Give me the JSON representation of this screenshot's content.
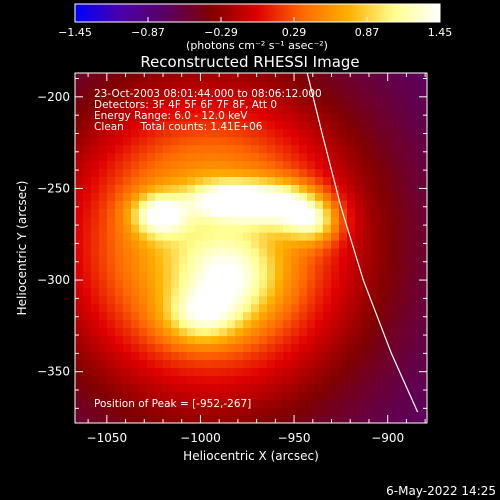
{
  "chart_data": {
    "type": "heatmap",
    "title": "Reconstructed RHESSI Image",
    "xlabel": "Heliocentric X (arcsec)",
    "ylabel": "Heliocentric Y (arcsec)",
    "xlim": [
      -1067,
      -879
    ],
    "ylim": [
      -378,
      -187
    ],
    "x_ticks": [
      {
        "value": -1050,
        "label": "−1050"
      },
      {
        "value": -1000,
        "label": "−1000"
      },
      {
        "value": -950,
        "label": "−950"
      },
      {
        "value": -900,
        "label": "−900"
      }
    ],
    "y_ticks": [
      {
        "value": -200,
        "label": "−200"
      },
      {
        "value": -250,
        "label": "−250"
      },
      {
        "value": -300,
        "label": "−300"
      },
      {
        "value": -350,
        "label": "−350"
      }
    ],
    "colorbar": {
      "min": -1.45,
      "max": 1.45,
      "ticks": [
        {
          "value": -1.45,
          "label": "−1.45"
        },
        {
          "value": -0.87,
          "label": "−0.87"
        },
        {
          "value": -0.29,
          "label": "−0.29"
        },
        {
          "value": 0.29,
          "label": "0.29"
        },
        {
          "value": 0.87,
          "label": "0.87"
        },
        {
          "value": 1.45,
          "label": "1.45"
        }
      ],
      "units_label": "(photons cm⁻² s⁻¹ asec⁻²)",
      "colors": [
        "#0000ff",
        "#4a00aa",
        "#5a0060",
        "#800000",
        "#e00000",
        "#ff6a00",
        "#ffb000",
        "#ffff90",
        "#ffffff"
      ]
    },
    "annotations": [
      "23-Oct-2003 08:01:44.000 to 08:06:12.000",
      "Detectors: 3F 4F 5F 6F 7F 8F, Att 0",
      "Energy Range: 6.0 - 12.0 keV",
      "Clean     Total counts: 1.41E+06"
    ],
    "peak_label": "Position of Peak = [-952,-267]",
    "limb_curve": [
      {
        "x": -943,
        "y": -187
      },
      {
        "x": -935,
        "y": -220
      },
      {
        "x": -925,
        "y": -260
      },
      {
        "x": -913,
        "y": -300
      },
      {
        "x": -898,
        "y": -340
      },
      {
        "x": -884,
        "y": -372
      }
    ],
    "source_blobs": [
      {
        "x": -995,
        "y": -280,
        "sx": 58,
        "sy": 62,
        "v": 0.85
      },
      {
        "x": -1022,
        "y": -264,
        "sx": 10,
        "sy": 8,
        "v": 1.05
      },
      {
        "x": -986,
        "y": -256,
        "sx": 14,
        "sy": 7,
        "v": 0.95
      },
      {
        "x": -958,
        "y": -258,
        "sx": 15,
        "sy": 8,
        "v": 1.2
      },
      {
        "x": -940,
        "y": -268,
        "sx": 10,
        "sy": 8,
        "v": 0.8
      },
      {
        "x": -985,
        "y": -300,
        "sx": 18,
        "sy": 16,
        "v": 0.5
      },
      {
        "x": -1000,
        "y": -320,
        "sx": 14,
        "sy": 10,
        "v": 0.45
      }
    ],
    "background_level": -0.78
  },
  "footer": {
    "date_stamp": "6-May-2022 14:25"
  }
}
